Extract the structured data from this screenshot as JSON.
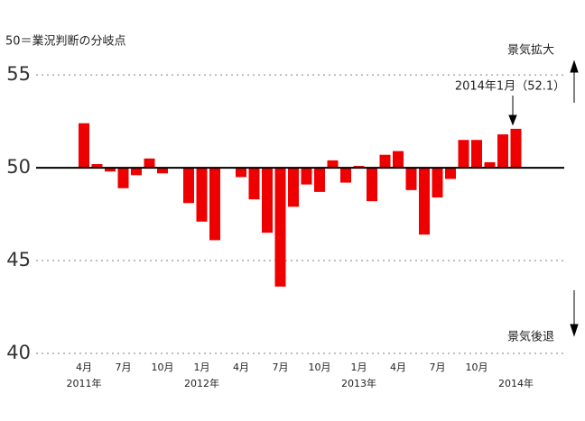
{
  "chart_data": {
    "type": "bar",
    "title": "50＝業況判断の分岐点",
    "annotations": [
      "景気拡大",
      "景気後退",
      "2014年1月（52.1）"
    ],
    "categories": [
      "4月",
      null,
      null,
      "7月",
      null,
      null,
      "10月",
      null,
      null,
      "1月",
      null,
      null,
      "4月",
      null,
      null,
      "7月",
      null,
      null,
      "10月",
      null,
      null,
      "1月",
      null,
      null,
      "4月",
      null,
      null,
      "7月",
      null,
      null,
      "10月",
      null,
      null,
      null
    ],
    "year_labels": [
      "2011年",
      null,
      null,
      null,
      null,
      null,
      null,
      null,
      null,
      "2012年",
      null,
      null,
      null,
      null,
      null,
      null,
      null,
      null,
      null,
      null,
      null,
      "2013年",
      null,
      null,
      null,
      null,
      null,
      null,
      null,
      null,
      null,
      null,
      null,
      "2014年"
    ],
    "values": [
      52.4,
      50.2,
      49.8,
      48.9,
      49.6,
      50.5,
      49.7,
      50.0,
      48.1,
      47.1,
      46.1,
      50.0,
      49.5,
      48.3,
      46.5,
      43.6,
      47.9,
      49.1,
      48.7,
      50.4,
      49.2,
      50.1,
      48.2,
      50.7,
      50.9,
      48.8,
      46.4,
      48.4,
      49.4,
      51.5,
      51.5,
      50.3,
      51.8,
      52.1
    ],
    "color": "#ee0000",
    "baseline": 50,
    "ylim": [
      40,
      57
    ],
    "yticks": [
      40,
      45,
      50,
      55
    ],
    "grid": true
  }
}
